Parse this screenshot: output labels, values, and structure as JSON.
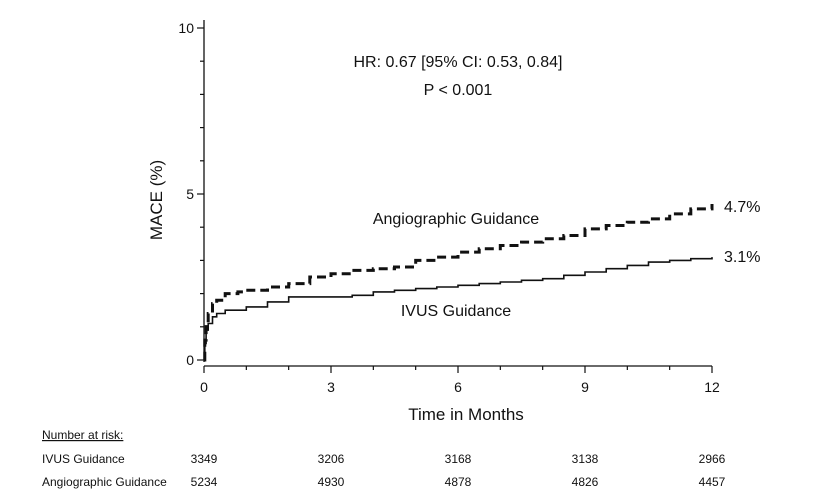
{
  "chart_data": {
    "type": "line",
    "title": "",
    "xlabel": "Time in Months",
    "ylabel": "MACE (%)",
    "xlim": [
      0,
      12
    ],
    "ylim": [
      0,
      10
    ],
    "x_ticks": [
      "0",
      "3",
      "6",
      "9",
      "12"
    ],
    "y_ticks": [
      "0",
      "5",
      "10"
    ],
    "annotations": {
      "hr": "HR: 0.67 [95% CI: 0.53, 0.84]",
      "p": "P < 0.001"
    },
    "series": [
      {
        "name": "Angiographic Guidance",
        "style": "dashed",
        "end_label": "4.7%",
        "x": [
          0,
          0.02,
          0.05,
          0.1,
          0.2,
          0.3,
          0.5,
          0.8,
          1,
          1.5,
          2,
          2.5,
          3,
          3.5,
          4,
          4.5,
          5,
          5.5,
          6,
          6.5,
          7,
          7.5,
          8,
          8.5,
          9,
          9.5,
          10,
          10.5,
          11,
          11.5,
          12
        ],
        "y": [
          0,
          0.6,
          1.1,
          1.4,
          1.7,
          1.8,
          2.0,
          2.05,
          2.1,
          2.2,
          2.3,
          2.5,
          2.6,
          2.7,
          2.75,
          2.8,
          3.0,
          3.1,
          3.25,
          3.35,
          3.45,
          3.55,
          3.65,
          3.75,
          3.95,
          4.05,
          4.15,
          4.25,
          4.4,
          4.55,
          4.7
        ]
      },
      {
        "name": "IVUS Guidance",
        "style": "solid",
        "end_label": "3.1%",
        "x": [
          0,
          0.02,
          0.05,
          0.1,
          0.2,
          0.3,
          0.5,
          1,
          1.5,
          2,
          3,
          3.5,
          4,
          4.5,
          5,
          5.5,
          6,
          6.5,
          7,
          7.5,
          8,
          8.5,
          9,
          9.5,
          10,
          10.5,
          11,
          11.5,
          12
        ],
        "y": [
          0,
          0.5,
          0.9,
          1.1,
          1.3,
          1.4,
          1.5,
          1.6,
          1.75,
          1.9,
          1.9,
          1.95,
          2.05,
          2.1,
          2.15,
          2.2,
          2.25,
          2.3,
          2.35,
          2.4,
          2.45,
          2.55,
          2.65,
          2.75,
          2.85,
          2.95,
          3.0,
          3.05,
          3.1
        ]
      }
    ],
    "legend": "inline labels"
  },
  "risk_table": {
    "title": "Number at risk:",
    "rows": [
      {
        "label": "IVUS Guidance",
        "values": [
          "3349",
          "3206",
          "3168",
          "3138",
          "2966"
        ]
      },
      {
        "label": "Angiographic Guidance",
        "values": [
          "5234",
          "4930",
          "4878",
          "4826",
          "4457"
        ]
      }
    ]
  },
  "colors": {
    "line": "#111111",
    "background": "#ffffff"
  }
}
